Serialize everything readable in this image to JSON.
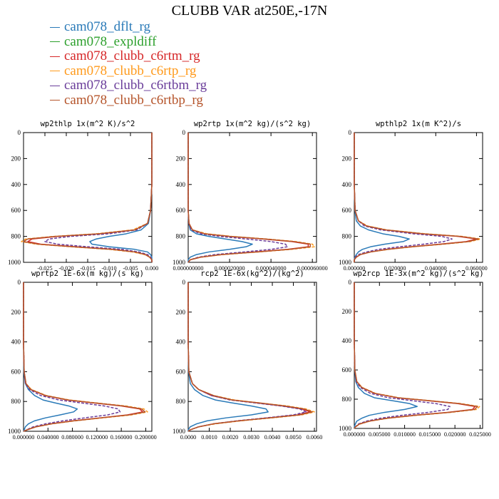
{
  "page_title": "CLUBB VAR at250E,-17N",
  "colors": {
    "dflt": "#2a7ab8",
    "expldiff": "#2ca02c",
    "c6rtm": "#d62728",
    "c6rtp": "#ff9a1c",
    "c6rtbm": "#6a3d9a",
    "c6rtbp": "#b5542a"
  },
  "legend": [
    {
      "name": "cam078_dflt_rg",
      "color": "#2a7ab8"
    },
    {
      "name": "cam078_expldiff",
      "color": "#2ca02c"
    },
    {
      "name": "cam078_clubb_c6rtm_rg",
      "color": "#d62728"
    },
    {
      "name": "cam078_clubb_c6rtp_rg",
      "color": "#ff9a1c"
    },
    {
      "name": "cam078_clubb_c6rtbm_rg",
      "color": "#6a3d9a"
    },
    {
      "name": "cam078_clubb_c6rtbp_rg",
      "color": "#b5542a"
    }
  ],
  "chart_data": [
    {
      "type": "line",
      "title": "wp2thlp  1x(m^2 K)/s^2",
      "xlim": [
        -0.03,
        0.0
      ],
      "ylim": [
        1000,
        0
      ],
      "xticks": [
        -0.025,
        -0.02,
        -0.015,
        -0.01,
        -0.005,
        0.0
      ],
      "xtick_labels": [
        "-0.025",
        "-0.020",
        "-0.015",
        "-0.010",
        "-0.005",
        "0.000"
      ],
      "yticks": [
        0,
        200,
        400,
        600,
        800,
        1000
      ],
      "ytick_labels": [
        "0",
        "200",
        "400",
        "600",
        "800",
        "1000"
      ],
      "y": [
        0,
        200,
        400,
        600,
        700,
        750,
        780,
        800,
        820,
        840,
        860,
        880,
        900,
        920,
        940,
        960,
        980,
        1000
      ],
      "series": [
        {
          "key": "dflt",
          "dash": false,
          "values": [
            0,
            0,
            0,
            -0.0003,
            -0.0008,
            -0.0025,
            -0.006,
            -0.01,
            -0.013,
            -0.0145,
            -0.014,
            -0.01,
            -0.004,
            -0.001,
            -0.0003,
            0,
            0,
            0
          ]
        },
        {
          "key": "c6rtm",
          "dash": false,
          "values": [
            0,
            0,
            0,
            -0.0003,
            -0.001,
            -0.004,
            -0.012,
            -0.022,
            -0.028,
            -0.029,
            -0.026,
            -0.018,
            -0.009,
            -0.004,
            -0.0015,
            -0.0005,
            0,
            0
          ]
        },
        {
          "key": "c6rtp",
          "dash": true,
          "values": [
            0,
            0,
            0,
            -0.0003,
            -0.001,
            -0.0045,
            -0.013,
            -0.023,
            -0.0295,
            -0.0305,
            -0.027,
            -0.019,
            -0.01,
            -0.0045,
            -0.0017,
            -0.0005,
            0,
            0
          ]
        },
        {
          "key": "c6rtbm",
          "dash": true,
          "values": [
            0,
            0,
            0,
            -0.0003,
            -0.001,
            -0.0035,
            -0.01,
            -0.019,
            -0.024,
            -0.025,
            -0.022,
            -0.015,
            -0.007,
            -0.003,
            -0.001,
            -0.0003,
            0,
            0
          ]
        },
        {
          "key": "c6rtbp",
          "dash": false,
          "values": [
            0,
            0,
            0,
            -0.0003,
            -0.001,
            -0.004,
            -0.0125,
            -0.0225,
            -0.029,
            -0.03,
            -0.0265,
            -0.0185,
            -0.0095,
            -0.004,
            -0.0015,
            -0.0005,
            0,
            0
          ]
        }
      ]
    },
    {
      "type": "line",
      "title": "wp2rtp  1x(m^2 kg)/(s^2 kg)",
      "xlim": [
        0,
        6.2e-05
      ],
      "ylim": [
        1000,
        0
      ],
      "xticks": [
        0,
        2e-05,
        4e-05,
        6e-05
      ],
      "xtick_labels": [
        "0.000000000",
        "0.000020000",
        "0.000040000",
        "0.000060000"
      ],
      "yticks": [
        0,
        200,
        400,
        600,
        800,
        1000
      ],
      "ytick_labels": [
        "0",
        "200",
        "400",
        "600",
        "800",
        "1000"
      ],
      "y": [
        0,
        200,
        400,
        600,
        700,
        750,
        780,
        800,
        820,
        840,
        860,
        880,
        900,
        920,
        940,
        960,
        980,
        1000
      ],
      "series": [
        {
          "key": "dflt",
          "dash": false,
          "values": [
            0,
            0,
            0,
            0,
            3e-07,
            1e-06,
            4e-06,
            1e-05,
            1.8e-05,
            2.6e-05,
            3.1e-05,
            2.8e-05,
            2e-05,
            1e-05,
            4e-06,
            1e-06,
            0,
            0
          ]
        },
        {
          "key": "c6rtm",
          "dash": false,
          "values": [
            0,
            0,
            0,
            0,
            4e-07,
            2e-06,
            8e-06,
            2e-05,
            3.6e-05,
            5e-05,
            5.8e-05,
            5.8e-05,
            4.8e-05,
            3.2e-05,
            1.6e-05,
            6e-06,
            1e-06,
            0
          ]
        },
        {
          "key": "c6rtp",
          "dash": true,
          "values": [
            0,
            0,
            0,
            0,
            4e-07,
            2e-06,
            9e-06,
            2.1e-05,
            3.8e-05,
            5.2e-05,
            6e-05,
            6.1e-05,
            5e-05,
            3.4e-05,
            1.7e-05,
            6e-06,
            1e-06,
            0
          ]
        },
        {
          "key": "c6rtbm",
          "dash": true,
          "values": [
            0,
            0,
            0,
            0,
            3e-07,
            1.5e-06,
            6e-06,
            1.5e-05,
            2.8e-05,
            4e-05,
            4.7e-05,
            4.8e-05,
            4e-05,
            2.7e-05,
            1.3e-05,
            5e-06,
            1e-06,
            0
          ]
        },
        {
          "key": "c6rtbp",
          "dash": false,
          "values": [
            0,
            0,
            0,
            0,
            4e-07,
            2e-06,
            8e-06,
            2e-05,
            3.7e-05,
            5.1e-05,
            5.9e-05,
            5.9e-05,
            4.9e-05,
            3.3e-05,
            1.6e-05,
            6e-06,
            1e-06,
            0
          ]
        }
      ]
    },
    {
      "type": "line",
      "title": "wpthlp2  1x(m K^2)/s",
      "xlim": [
        0,
        0.063
      ],
      "ylim": [
        1000,
        0
      ],
      "xticks": [
        0,
        0.02,
        0.04,
        0.06
      ],
      "xtick_labels": [
        "0.000000",
        "0.020000",
        "0.040000",
        "0.060000"
      ],
      "yticks": [
        0,
        200,
        400,
        600,
        800,
        1000
      ],
      "ytick_labels": [
        "0",
        "200",
        "400",
        "600",
        "800",
        "1000"
      ],
      "y": [
        0,
        200,
        400,
        600,
        680,
        720,
        750,
        780,
        800,
        820,
        840,
        860,
        880,
        900,
        920,
        940,
        960,
        980,
        1000
      ],
      "series": [
        {
          "key": "dflt",
          "dash": false,
          "values": [
            0,
            0,
            0,
            0.0003,
            0.001,
            0.003,
            0.007,
            0.014,
            0.022,
            0.027,
            0.024,
            0.015,
            0.008,
            0.004,
            0.002,
            0.001,
            0.0003,
            0,
            0
          ]
        },
        {
          "key": "c6rtm",
          "dash": false,
          "values": [
            0,
            0,
            0,
            0.0004,
            0.002,
            0.006,
            0.015,
            0.033,
            0.051,
            0.06,
            0.055,
            0.042,
            0.028,
            0.016,
            0.008,
            0.003,
            0.001,
            0,
            0
          ]
        },
        {
          "key": "c6rtp",
          "dash": true,
          "values": [
            0,
            0,
            0,
            0.0004,
            0.002,
            0.0065,
            0.016,
            0.035,
            0.053,
            0.062,
            0.057,
            0.044,
            0.029,
            0.017,
            0.008,
            0.003,
            0.001,
            0,
            0
          ]
        },
        {
          "key": "c6rtbm",
          "dash": true,
          "values": [
            0,
            0,
            0,
            0.0004,
            0.002,
            0.005,
            0.013,
            0.029,
            0.043,
            0.048,
            0.044,
            0.034,
            0.022,
            0.012,
            0.006,
            0.002,
            0.0005,
            0,
            0
          ]
        },
        {
          "key": "c6rtbp",
          "dash": false,
          "values": [
            0,
            0,
            0,
            0.0004,
            0.002,
            0.006,
            0.0155,
            0.034,
            0.052,
            0.061,
            0.056,
            0.043,
            0.0285,
            0.0165,
            0.008,
            0.003,
            0.001,
            0,
            0
          ]
        }
      ]
    },
    {
      "type": "line",
      "title": "wprtp2  1E-6x(m kg)/(s kg)",
      "xlim": [
        0,
        0.21
      ],
      "ylim": [
        1000,
        0
      ],
      "xticks": [
        0,
        0.04,
        0.08,
        0.12,
        0.16,
        0.2
      ],
      "xtick_labels": [
        "0.000000",
        "0.040000",
        "0.080000",
        "0.120000",
        "0.160000",
        "0.200000"
      ],
      "yticks": [
        0,
        200,
        400,
        600,
        800,
        1000
      ],
      "ytick_labels": [
        "0",
        "200",
        "400",
        "600",
        "800",
        "1000"
      ],
      "y": [
        0,
        200,
        400,
        600,
        680,
        720,
        760,
        790,
        810,
        830,
        850,
        870,
        890,
        910,
        930,
        950,
        970,
        990,
        1000
      ],
      "series": [
        {
          "key": "dflt",
          "dash": false,
          "values": [
            0,
            0,
            0,
            0.0005,
            0.003,
            0.008,
            0.018,
            0.032,
            0.052,
            0.074,
            0.088,
            0.082,
            0.06,
            0.036,
            0.018,
            0.008,
            0.003,
            0.001,
            0
          ]
        },
        {
          "key": "c6rtm",
          "dash": false,
          "values": [
            0,
            0,
            0,
            0.001,
            0.004,
            0.012,
            0.035,
            0.072,
            0.115,
            0.16,
            0.19,
            0.195,
            0.17,
            0.125,
            0.08,
            0.045,
            0.02,
            0.006,
            0
          ]
        },
        {
          "key": "c6rtp",
          "dash": true,
          "values": [
            0,
            0,
            0,
            0.001,
            0.004,
            0.013,
            0.037,
            0.075,
            0.12,
            0.167,
            0.197,
            0.203,
            0.177,
            0.13,
            0.084,
            0.047,
            0.021,
            0.006,
            0
          ]
        },
        {
          "key": "c6rtbm",
          "dash": true,
          "values": [
            0,
            0,
            0,
            0.001,
            0.003,
            0.01,
            0.028,
            0.058,
            0.095,
            0.132,
            0.155,
            0.158,
            0.138,
            0.1,
            0.064,
            0.036,
            0.016,
            0.005,
            0
          ]
        },
        {
          "key": "c6rtbp",
          "dash": false,
          "values": [
            0,
            0,
            0,
            0.001,
            0.004,
            0.012,
            0.036,
            0.073,
            0.117,
            0.163,
            0.193,
            0.199,
            0.173,
            0.127,
            0.082,
            0.046,
            0.02,
            0.006,
            0
          ]
        }
      ]
    },
    {
      "type": "line",
      "title": "rcp2  1E-6x(kg^2)/(kg^2)",
      "xlim": [
        0,
        0.0061
      ],
      "ylim": [
        1000,
        0
      ],
      "xticks": [
        0,
        0.001,
        0.002,
        0.003,
        0.004,
        0.005,
        0.006
      ],
      "xtick_labels": [
        "0.0000",
        "0.0010",
        "0.0020",
        "0.0030",
        "0.0040",
        "0.0050",
        "0.0060"
      ],
      "yticks": [
        0,
        200,
        400,
        600,
        800,
        1000
      ],
      "ytick_labels": [
        "0",
        "200",
        "400",
        "600",
        "800",
        "1000"
      ],
      "y": [
        0,
        200,
        400,
        600,
        680,
        720,
        760,
        790,
        810,
        830,
        850,
        870,
        890,
        910,
        930,
        950,
        970,
        990,
        1000
      ],
      "series": [
        {
          "key": "dflt",
          "dash": false,
          "values": [
            0,
            0,
            0,
            2e-05,
            0.0001,
            0.0003,
            0.0007,
            0.0013,
            0.0021,
            0.003,
            0.0037,
            0.0038,
            0.003,
            0.0018,
            0.0009,
            0.0004,
            0.0001,
            0,
            0
          ]
        },
        {
          "key": "c6rtm",
          "dash": false,
          "values": [
            0,
            0,
            0,
            3e-05,
            0.0002,
            0.0005,
            0.0011,
            0.0021,
            0.0033,
            0.0045,
            0.0054,
            0.0058,
            0.0052,
            0.0038,
            0.0024,
            0.0012,
            0.0005,
            0.0001,
            0
          ]
        },
        {
          "key": "c6rtp",
          "dash": true,
          "values": [
            0,
            0,
            0,
            3e-05,
            0.0002,
            0.0005,
            0.0012,
            0.0022,
            0.0034,
            0.0047,
            0.0056,
            0.006,
            0.0054,
            0.004,
            0.0025,
            0.0013,
            0.0005,
            0.0001,
            0
          ]
        },
        {
          "key": "c6rtbm",
          "dash": true,
          "values": [
            0,
            0,
            0,
            3e-05,
            0.0002,
            0.0005,
            0.0011,
            0.002,
            0.0032,
            0.0044,
            0.0053,
            0.0056,
            0.005,
            0.0037,
            0.0023,
            0.0012,
            0.0005,
            0.0001,
            0
          ]
        },
        {
          "key": "c6rtbp",
          "dash": false,
          "values": [
            0,
            0,
            0,
            3e-05,
            0.0002,
            0.0005,
            0.0012,
            0.0021,
            0.0034,
            0.0046,
            0.0055,
            0.0059,
            0.0053,
            0.0039,
            0.0024,
            0.0012,
            0.0005,
            0.0001,
            0
          ]
        }
      ]
    },
    {
      "type": "line",
      "title": "wp2rcp  1E-3x(m^2 kg)/(s^2 kg)",
      "xlim": [
        0,
        0.0255
      ],
      "ylim": [
        1000,
        0
      ],
      "xticks": [
        0,
        0.005,
        0.01,
        0.015,
        0.02,
        0.025
      ],
      "xtick_labels": [
        "0.000000",
        "0.005000",
        "0.010000",
        "0.015000",
        "0.020000",
        "0.025000"
      ],
      "yticks": [
        0,
        200,
        400,
        600,
        800,
        1000
      ],
      "ytick_labels": [
        "0",
        "200",
        "400",
        "600",
        "800",
        "1000"
      ],
      "y": [
        0,
        200,
        400,
        600,
        680,
        720,
        760,
        790,
        810,
        830,
        850,
        870,
        890,
        910,
        930,
        950,
        970,
        990,
        1000
      ],
      "series": [
        {
          "key": "dflt",
          "dash": false,
          "values": [
            0,
            0,
            0,
            0.0001,
            0.0003,
            0.0008,
            0.002,
            0.004,
            0.0075,
            0.011,
            0.0125,
            0.01,
            0.006,
            0.003,
            0.0015,
            0.0005,
            0.0002,
            0,
            0
          ]
        },
        {
          "key": "c6rtm",
          "dash": false,
          "values": [
            0,
            0,
            0,
            0.0001,
            0.0005,
            0.0015,
            0.004,
            0.0085,
            0.0145,
            0.0205,
            0.024,
            0.0235,
            0.0185,
            0.012,
            0.0065,
            0.003,
            0.001,
            0.0002,
            0
          ]
        },
        {
          "key": "c6rtp",
          "dash": true,
          "values": [
            0,
            0,
            0,
            0.0001,
            0.0005,
            0.0016,
            0.0042,
            0.0089,
            0.015,
            0.0212,
            0.0249,
            0.0243,
            0.0192,
            0.0125,
            0.0068,
            0.0031,
            0.0011,
            0.0002,
            0
          ]
        },
        {
          "key": "c6rtbm",
          "dash": true,
          "values": [
            0,
            0,
            0,
            0.0001,
            0.0004,
            0.0012,
            0.0032,
            0.0068,
            0.0115,
            0.0162,
            0.019,
            0.0186,
            0.0147,
            0.0095,
            0.0052,
            0.0024,
            0.0008,
            0.0002,
            0
          ]
        },
        {
          "key": "c6rtbp",
          "dash": false,
          "values": [
            0,
            0,
            0,
            0.0001,
            0.0005,
            0.0015,
            0.0041,
            0.0087,
            0.0148,
            0.0208,
            0.0245,
            0.0239,
            0.0188,
            0.0122,
            0.0066,
            0.003,
            0.001,
            0.0002,
            0
          ]
        }
      ]
    }
  ]
}
